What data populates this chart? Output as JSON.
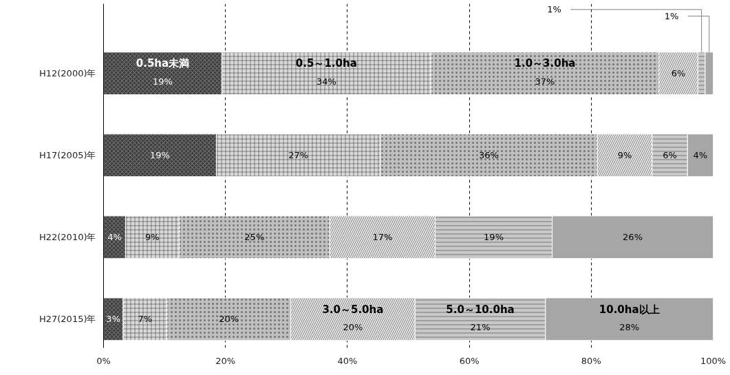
{
  "chart_data": {
    "type": "bar",
    "orientation": "horizontal",
    "stacked": true,
    "categories": [
      "H12(2000)年",
      "H17(2005)年",
      "H22(2010)年",
      "H27(2015)年"
    ],
    "series": [
      {
        "name": "0.5ha未満",
        "color": "#404040",
        "values": [
          19.4,
          18.5,
          3.6,
          3.2
        ],
        "value_labels": [
          "19%",
          "19%",
          "4%",
          "3%"
        ]
      },
      {
        "name": "0.5～1.0ha",
        "color": "#d9d9d9",
        "values": [
          34.3,
          26.9,
          8.8,
          7.2
        ],
        "value_labels": [
          "34%",
          "27%",
          "9%",
          "7%"
        ]
      },
      {
        "name": "1.0～3.0ha",
        "color": "#bfbfbf",
        "values": [
          37.4,
          35.6,
          24.7,
          20.3
        ],
        "value_labels": [
          "37%",
          "36%",
          "25%",
          "20%"
        ]
      },
      {
        "name": "3.0～5.0ha",
        "color": "#e6e6e6",
        "values": [
          6.4,
          9.0,
          17.3,
          20.4
        ],
        "value_labels": [
          "6%",
          "9%",
          "17%",
          "20%"
        ]
      },
      {
        "name": "5.0～10.0ha",
        "color": "#c8c8c8",
        "values": [
          1.2,
          5.8,
          19.2,
          21.4
        ],
        "value_labels": [
          "1%",
          "6%",
          "19%",
          "21%"
        ]
      },
      {
        "name": "10.0ha以上",
        "color": "#a6a6a6",
        "values": [
          1.3,
          4.2,
          26.4,
          27.5
        ],
        "value_labels": [
          "1%",
          "4%",
          "26%",
          "28%"
        ]
      }
    ],
    "xlim": [
      0,
      100
    ],
    "xticks": [
      {
        "value": 0,
        "label": "0%"
      },
      {
        "value": 20,
        "label": "20%"
      },
      {
        "value": 40,
        "label": "40%"
      },
      {
        "value": 60,
        "label": "60%"
      },
      {
        "value": 80,
        "label": "80%"
      },
      {
        "value": 100,
        "label": "100%"
      }
    ],
    "grid": "x"
  }
}
